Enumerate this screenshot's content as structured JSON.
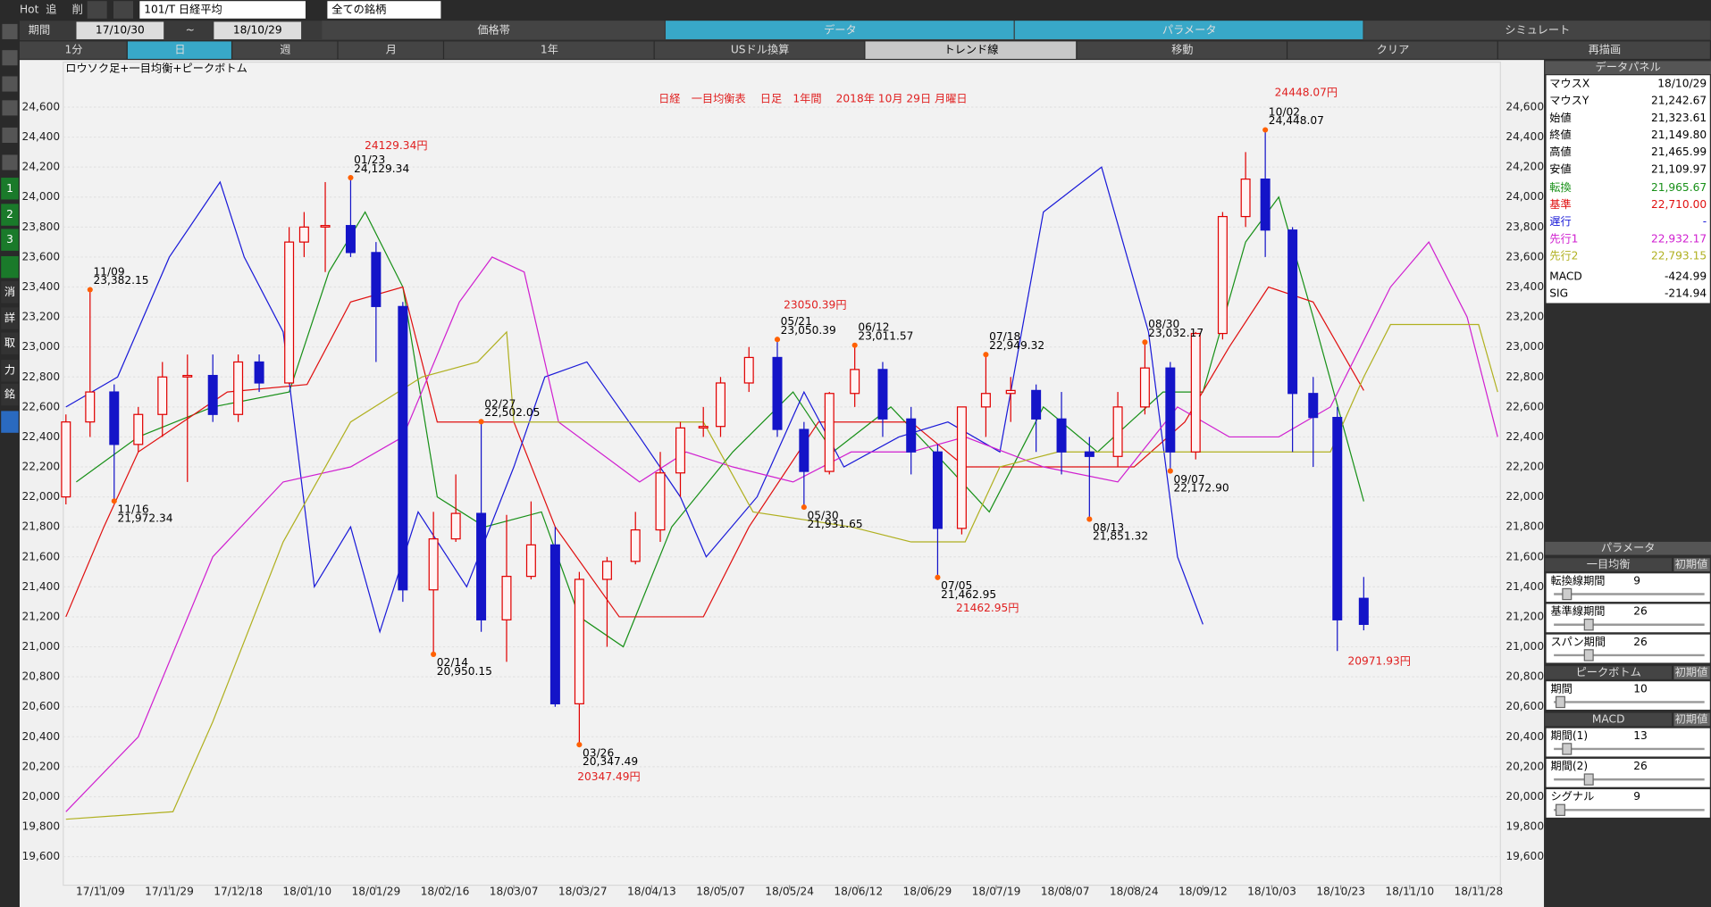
{
  "toolbar": {
    "buttons": [
      "Hot",
      "追",
      "削"
    ],
    "symbol": "101/T 日経平均",
    "universe": "全ての銘柄",
    "period_label": "期間",
    "from": "17/10/30",
    "tilde": "~",
    "to": "18/10/29"
  },
  "tabs": [
    "価格帯",
    "データ",
    "パラメータ",
    "シミュレート"
  ],
  "buttons": [
    "1分",
    "日",
    "週",
    "月",
    "1年",
    "USドル換算",
    "トレンド線",
    "移動",
    "クリア",
    "再描画"
  ],
  "sidebar": [
    "1",
    "2",
    "3",
    "消",
    "詳",
    "取",
    "力",
    "銘"
  ],
  "data_panel": {
    "title": "データパネル",
    "rows": [
      [
        "マウスX",
        "18/10/29"
      ],
      [
        "マウスY",
        "21,242.67"
      ],
      [
        "始値",
        "21,323.61"
      ],
      [
        "終値",
        "21,149.80"
      ],
      [
        "高値",
        "21,465.99"
      ],
      [
        "安値",
        "21,109.97"
      ],
      [
        "転換",
        "21,965.67"
      ],
      [
        "基準",
        "22,710.00"
      ],
      [
        "遅行",
        "-"
      ],
      [
        "先行1",
        "22,932.17"
      ],
      [
        "先行2",
        "22,793.15"
      ],
      [
        "MACD",
        "-424.99"
      ],
      [
        "SIG",
        "-214.94"
      ]
    ]
  },
  "param_panel": {
    "title": "パラメータ",
    "sections": [
      {
        "title": "一目均衡",
        "reset": "初期値",
        "params": [
          [
            "転換線期間",
            9
          ],
          [
            "基準線期間",
            26
          ],
          [
            "スパン期間",
            26
          ]
        ]
      },
      {
        "title": "ピークボトム",
        "reset": "初期値",
        "params": [
          [
            "期間",
            10
          ]
        ]
      },
      {
        "title": "MACD",
        "reset": "初期値",
        "params": [
          [
            "期間(1)",
            13
          ],
          [
            "期間(2)",
            26
          ],
          [
            "シグナル",
            9
          ]
        ]
      }
    ]
  },
  "chart_data": {
    "type": "candlestick",
    "title": "日経　一目均衡表　 日足　1年間　 2018年 10月 29日 月曜日",
    "subtitle": "ロウソク足+一目均衡+ピークボトム",
    "up_color": "#e00000",
    "down_color": "#1414c8",
    "grid": true,
    "x": [
      "17/10/30",
      "17/11/06",
      "17/11/13",
      "17/11/20",
      "17/11/27",
      "17/12/04",
      "17/12/11",
      "17/12/18",
      "17/12/25",
      "18/01/04",
      "18/01/09",
      "18/01/15",
      "18/01/22",
      "18/01/29",
      "18/02/05",
      "18/02/13",
      "18/02/19",
      "18/02/26",
      "18/03/05",
      "18/03/12",
      "18/03/19",
      "18/03/26",
      "18/04/02",
      "18/04/09",
      "18/04/16",
      "18/04/23",
      "18/05/01",
      "18/05/07",
      "18/05/14",
      "18/05/21",
      "18/05/28",
      "18/06/04",
      "18/06/11",
      "18/06/18",
      "18/06/25",
      "18/07/02",
      "18/07/09",
      "18/07/16",
      "18/07/23",
      "18/07/30",
      "18/08/06",
      "18/08/13",
      "18/08/20",
      "18/08/27",
      "18/09/03",
      "18/09/10",
      "18/09/18",
      "18/09/25",
      "18/10/01",
      "18/10/09",
      "18/10/15",
      "18/10/22",
      "18/10/29"
    ],
    "open": [
      22000,
      22500,
      22700,
      22350,
      22550,
      22800,
      22810,
      22550,
      22900,
      22760,
      23700,
      23800,
      23810,
      23630,
      23270,
      21380,
      21720,
      21890,
      21180,
      21470,
      21680,
      20620,
      21450,
      21570,
      21780,
      22160,
      22460,
      22470,
      22760,
      22930,
      22450,
      22170,
      22690,
      22850,
      22520,
      22300,
      21790,
      22600,
      22690,
      22710,
      22520,
      22300,
      22270,
      22600,
      22860,
      22300,
      23090,
      23870,
      24120,
      23780,
      22690,
      22530,
      21323.61
    ],
    "high": [
      22550,
      23382.15,
      22750,
      22600,
      22900,
      22950,
      22950,
      22950,
      22950,
      23800,
      23900,
      24100,
      24129.34,
      23700,
      23300,
      21900,
      22150,
      22502.05,
      21880,
      21970,
      21800,
      21500,
      21600,
      21900,
      22300,
      22500,
      22600,
      22800,
      23000,
      23050.39,
      22500,
      22700,
      23011.57,
      22900,
      22600,
      22350,
      22600,
      22949.32,
      22800,
      22750,
      22700,
      22400,
      22700,
      23032.17,
      22900,
      23100,
      23900,
      24300,
      24448.07,
      23800,
      22800,
      22600,
      21465.99
    ],
    "low": [
      21950,
      22400,
      21972.34,
      22300,
      22400,
      22100,
      22500,
      22500,
      22700,
      22750,
      23600,
      23500,
      23600,
      22900,
      21300,
      20950.15,
      21700,
      21100,
      20900,
      21450,
      20600,
      20347.49,
      21000,
      21550,
      21700,
      22000,
      22400,
      22400,
      22700,
      22400,
      21931.65,
      22150,
      22600,
      22400,
      22150,
      21462.95,
      21750,
      22400,
      22500,
      22300,
      22150,
      21851.32,
      22200,
      22550,
      22172.9,
      22250,
      23050,
      23800,
      23600,
      22300,
      22200,
      20971.93,
      21109.97
    ],
    "close": [
      22500,
      22700,
      22350,
      22550,
      22800,
      22810,
      22550,
      22900,
      22760,
      23700,
      23800,
      23810,
      23630,
      23270,
      21380,
      21720,
      21890,
      21180,
      21470,
      21680,
      20620,
      21450,
      21570,
      21780,
      22160,
      22460,
      22470,
      22760,
      22930,
      22450,
      22170,
      22690,
      22850,
      22520,
      22300,
      21790,
      22600,
      22690,
      22710,
      22520,
      22300,
      22270,
      22600,
      22860,
      22300,
      23090,
      23870,
      24120,
      23780,
      22690,
      22530,
      21180,
      21149.8
    ],
    "series": [
      {
        "name": "転換",
        "color": "#189018",
        "x": [
          "17/11/02",
          "17/11/20",
          "17/12/11",
          "18/01/04",
          "18/01/16",
          "18/01/26",
          "18/02/05",
          "18/02/14",
          "18/02/27",
          "18/03/15",
          "18/03/26",
          "18/04/06",
          "18/04/20",
          "18/05/10",
          "18/05/25",
          "18/06/05",
          "18/06/20",
          "18/07/05",
          "18/07/17",
          "18/08/01",
          "18/08/15",
          "18/09/01",
          "18/09/12",
          "18/09/25",
          "18/10/05",
          "18/10/15",
          "18/10/29"
        ],
        "values": [
          22100,
          22400,
          22600,
          22700,
          23500,
          23900,
          23400,
          22000,
          21800,
          21900,
          21200,
          21000,
          21800,
          22300,
          22700,
          22300,
          22600,
          22200,
          21900,
          22600,
          22300,
          22700,
          22700,
          23700,
          24000,
          23200,
          21970
        ]
      },
      {
        "name": "基準",
        "color": "#e01010",
        "x": [
          "17/10/30",
          "17/11/10",
          "17/11/20",
          "17/12/15",
          "18/01/10",
          "18/01/22",
          "18/02/05",
          "18/02/14",
          "18/03/07",
          "18/03/19",
          "18/04/05",
          "18/05/01",
          "18/05/14",
          "18/06/01",
          "18/06/25",
          "18/07/10",
          "18/08/01",
          "18/08/24",
          "18/09/07",
          "18/09/20",
          "18/10/02",
          "18/10/15",
          "18/10/29"
        ],
        "values": [
          21200,
          21800,
          22300,
          22700,
          22750,
          23300,
          23400,
          22500,
          22500,
          21800,
          21200,
          21200,
          21800,
          22500,
          22500,
          22200,
          22200,
          22200,
          22500,
          23000,
          23400,
          23300,
          22710
        ]
      },
      {
        "name": "遅行",
        "color": "#1a1ad8",
        "x": [
          "17/10/30",
          "17/11/14",
          "17/11/29",
          "17/12/13",
          "17/12/20",
          "18/01/02",
          "18/01/12",
          "18/01/22",
          "18/01/30",
          "18/02/09",
          "18/02/22",
          "18/03/07",
          "18/03/16",
          "18/03/28",
          "18/04/10",
          "18/04/23",
          "18/05/02",
          "18/05/16",
          "18/05/28",
          "18/06/08",
          "18/06/22",
          "18/07/05",
          "18/07/20",
          "18/08/01",
          "18/08/16",
          "18/08/28",
          "18/09/05",
          "18/09/12"
        ],
        "values": [
          22600,
          22800,
          23600,
          24100,
          23600,
          23100,
          21400,
          21800,
          21100,
          21900,
          21400,
          22200,
          22800,
          22900,
          22400,
          22000,
          21600,
          22000,
          22700,
          22200,
          22400,
          22500,
          22300,
          23900,
          24200,
          23100,
          21600,
          21150
        ]
      },
      {
        "name": "先行1",
        "color": "#d020d0",
        "x": [
          "17/10/30",
          "17/11/20",
          "17/12/11",
          "18/01/02",
          "18/01/22",
          "18/02/05",
          "18/02/20",
          "18/03/01",
          "18/03/10",
          "18/03/20",
          "18/04/10",
          "18/04/25",
          "18/05/10",
          "18/05/25",
          "18/06/10",
          "18/06/25",
          "18/07/10",
          "18/08/01",
          "18/08/20",
          "18/09/05",
          "18/09/20",
          "18/10/05",
          "18/10/20",
          "18/11/05",
          "18/11/15",
          "18/11/25",
          "18/12/03"
        ],
        "values": [
          19900,
          20400,
          21600,
          22100,
          22200,
          22400,
          23300,
          23600,
          23500,
          22500,
          22100,
          22300,
          22200,
          22100,
          22300,
          22300,
          22400,
          22200,
          22100,
          22600,
          22400,
          22400,
          22600,
          23400,
          23700,
          23200,
          22400
        ]
      },
      {
        "name": "先行2",
        "color": "#b0b020",
        "x": [
          "17/10/30",
          "17/11/30",
          "17/12/11",
          "18/01/02",
          "18/01/22",
          "18/02/10",
          "18/02/25",
          "18/03/05",
          "18/03/07",
          "18/05/01",
          "18/05/15",
          "18/06/10",
          "18/06/25",
          "18/07/10",
          "18/07/20",
          "18/08/05",
          "18/09/01",
          "18/09/20",
          "18/10/20",
          "18/10/29",
          "18/11/05",
          "18/11/28",
          "18/12/03"
        ],
        "values": [
          19850,
          19900,
          20500,
          21700,
          22500,
          22800,
          22900,
          23100,
          22500,
          22500,
          21900,
          21800,
          21700,
          21700,
          22200,
          22300,
          22300,
          22300,
          22300,
          22800,
          23150,
          23150,
          22700
        ]
      }
    ],
    "peaks": [
      {
        "date": "11/09",
        "value": 23382.15,
        "label": "23,382.15"
      },
      {
        "date": "11/16",
        "value": 21972.34,
        "label": "21,972.34"
      },
      {
        "date": "01/23",
        "value": 24129.34,
        "label": "24,129.34"
      },
      {
        "date": "02/14",
        "value": 20950.15,
        "label": "20,950.15"
      },
      {
        "date": "02/27",
        "value": 22502.05,
        "label": "22,502.05"
      },
      {
        "date": "03/26",
        "value": 20347.49,
        "label": "20,347.49"
      },
      {
        "date": "05/21",
        "value": 23050.39,
        "label": "23,050.39"
      },
      {
        "date": "05/30",
        "value": 21931.65,
        "label": "21,931.65"
      },
      {
        "date": "06/12",
        "value": 23011.57,
        "label": "23,011.57"
      },
      {
        "date": "07/05",
        "value": 21462.95,
        "label": "21,462.95"
      },
      {
        "date": "07/18",
        "value": 22949.32,
        "label": "22,949.32"
      },
      {
        "date": "08/13",
        "value": 21851.32,
        "label": "21,851.32"
      },
      {
        "date": "08/30",
        "value": 23032.17,
        "label": "23,032.17"
      },
      {
        "date": "09/07",
        "value": 22172.9,
        "label": "22,172.90"
      },
      {
        "date": "10/02",
        "value": 24448.07,
        "label": "24,448.07"
      }
    ],
    "annotations": [
      "24129.34円",
      "23050.39円",
      "20347.49円",
      "21462.95円",
      "24448.07円",
      "20971.93円"
    ],
    "ylim": [
      19410,
      24900
    ],
    "yticks": [
      {
        "value": 19600,
        "label": "19,600"
      },
      {
        "value": 19800,
        "label": "19,800"
      },
      {
        "value": 20000,
        "label": "20,000"
      },
      {
        "value": 20200,
        "label": "20,200"
      },
      {
        "value": 20400,
        "label": "20,400"
      },
      {
        "value": 20600,
        "label": "20,600"
      },
      {
        "value": 20800,
        "label": "20,800"
      },
      {
        "value": 21000,
        "label": "21,000"
      },
      {
        "value": 21200,
        "label": "21,200"
      },
      {
        "value": 21400,
        "label": "21,400"
      },
      {
        "value": 21600,
        "label": "21,600"
      },
      {
        "value": 21800,
        "label": "21,800"
      },
      {
        "value": 22000,
        "label": "22,000"
      },
      {
        "value": 22200,
        "label": "22,200"
      },
      {
        "value": 22400,
        "label": "22,400"
      },
      {
        "value": 22600,
        "label": "22,600"
      },
      {
        "value": 22800,
        "label": "22,800"
      },
      {
        "value": 23000,
        "label": "23,000"
      },
      {
        "value": 23200,
        "label": "23,200"
      },
      {
        "value": 23400,
        "label": "23,400"
      },
      {
        "value": 23600,
        "label": "23,600"
      },
      {
        "value": 23800,
        "label": "23,800"
      },
      {
        "value": 24000,
        "label": "24,000"
      },
      {
        "value": 24200,
        "label": "24,200"
      },
      {
        "value": 24400,
        "label": "24,400"
      },
      {
        "value": 24600,
        "label": "24,600"
      }
    ],
    "xticks": [
      "17/11/09",
      "17/11/29",
      "17/12/18",
      "18/01/10",
      "18/01/29",
      "18/02/16",
      "18/03/07",
      "18/03/27",
      "18/04/13",
      "18/05/07",
      "18/05/24",
      "18/06/12",
      "18/06/29",
      "18/07/19",
      "18/08/07",
      "18/08/24",
      "18/09/12",
      "18/10/03",
      "18/10/23",
      "18/11/10",
      "18/11/28"
    ]
  }
}
